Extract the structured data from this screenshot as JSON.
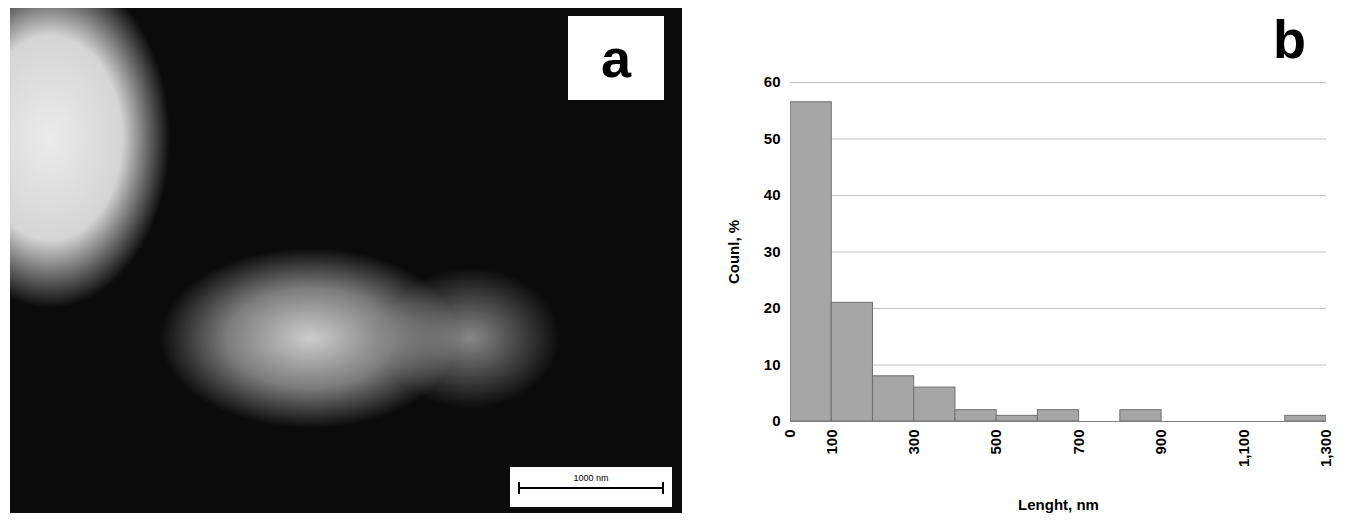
{
  "chart_data": {
    "type": "histogram",
    "panel_label": "b",
    "x_label": "Lenght, nm",
    "y_label": "Counl, %",
    "bins": [
      0,
      100,
      200,
      300,
      400,
      500,
      600,
      700,
      800,
      900,
      1000,
      1100,
      1200,
      1300
    ],
    "counts": [
      56.5,
      21,
      8,
      6,
      2,
      1,
      2,
      0,
      2,
      0,
      0,
      0,
      1
    ],
    "xlim": [
      0,
      1300
    ],
    "xticks": [
      0,
      100,
      300,
      500,
      700,
      900,
      1100,
      1300
    ],
    "ylim": [
      0,
      60
    ],
    "yticks": [
      0,
      10,
      20,
      30,
      40,
      50,
      60
    ],
    "grid": true,
    "color": "#a6a6a6"
  },
  "image_panel": {
    "label": "a",
    "scale_bar": "1000 nm"
  }
}
